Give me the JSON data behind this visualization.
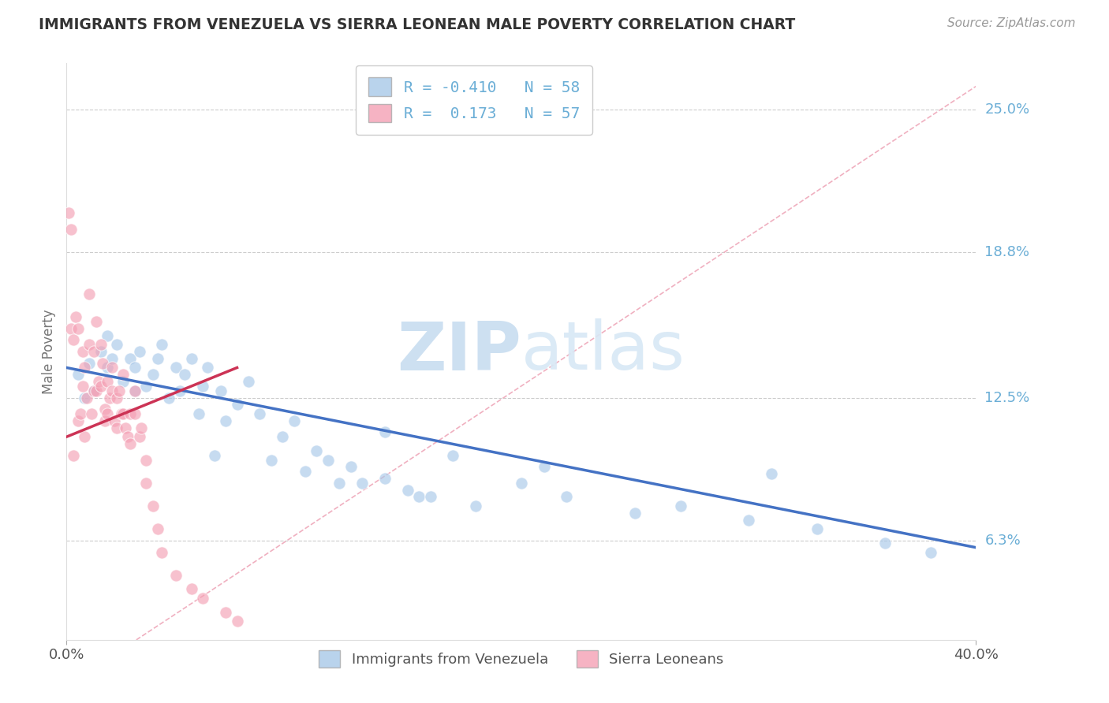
{
  "title": "IMMIGRANTS FROM VENEZUELA VS SIERRA LEONEAN MALE POVERTY CORRELATION CHART",
  "source": "Source: ZipAtlas.com",
  "xlabel": "",
  "ylabel": "Male Poverty",
  "legend_series": [
    {
      "label": "Immigrants from Venezuela",
      "R": -0.41,
      "N": 58,
      "color": "#a8c8e8"
    },
    {
      "label": "Sierra Leoneans",
      "R": 0.173,
      "N": 57,
      "color": "#f4a0b0"
    }
  ],
  "x_min": 0.0,
  "x_max": 0.4,
  "y_min": 0.02,
  "y_max": 0.27,
  "y_ticks": [
    0.063,
    0.125,
    0.188,
    0.25
  ],
  "y_tick_labels": [
    "6.3%",
    "12.5%",
    "18.8%",
    "25.0%"
  ],
  "x_ticks": [
    0.0,
    0.4
  ],
  "x_tick_labels": [
    "0.0%",
    "40.0%"
  ],
  "blue_scatter_x": [
    0.005,
    0.008,
    0.01,
    0.012,
    0.015,
    0.018,
    0.018,
    0.02,
    0.022,
    0.025,
    0.028,
    0.03,
    0.03,
    0.032,
    0.035,
    0.038,
    0.04,
    0.042,
    0.045,
    0.048,
    0.05,
    0.052,
    0.055,
    0.058,
    0.06,
    0.062,
    0.065,
    0.068,
    0.07,
    0.075,
    0.08,
    0.085,
    0.09,
    0.095,
    0.1,
    0.105,
    0.11,
    0.115,
    0.12,
    0.125,
    0.13,
    0.14,
    0.15,
    0.155,
    0.16,
    0.18,
    0.2,
    0.22,
    0.25,
    0.27,
    0.3,
    0.33,
    0.36,
    0.38,
    0.31,
    0.21,
    0.17,
    0.14
  ],
  "blue_scatter_y": [
    0.135,
    0.125,
    0.14,
    0.128,
    0.145,
    0.138,
    0.152,
    0.142,
    0.148,
    0.132,
    0.142,
    0.128,
    0.138,
    0.145,
    0.13,
    0.135,
    0.142,
    0.148,
    0.125,
    0.138,
    0.128,
    0.135,
    0.142,
    0.118,
    0.13,
    0.138,
    0.1,
    0.128,
    0.115,
    0.122,
    0.132,
    0.118,
    0.098,
    0.108,
    0.115,
    0.093,
    0.102,
    0.098,
    0.088,
    0.095,
    0.088,
    0.09,
    0.085,
    0.082,
    0.082,
    0.078,
    0.088,
    0.082,
    0.075,
    0.078,
    0.072,
    0.068,
    0.062,
    0.058,
    0.092,
    0.095,
    0.1,
    0.11
  ],
  "pink_scatter_x": [
    0.001,
    0.002,
    0.002,
    0.003,
    0.003,
    0.004,
    0.005,
    0.005,
    0.006,
    0.007,
    0.007,
    0.008,
    0.008,
    0.009,
    0.01,
    0.01,
    0.011,
    0.012,
    0.012,
    0.013,
    0.013,
    0.014,
    0.015,
    0.015,
    0.016,
    0.017,
    0.017,
    0.018,
    0.018,
    0.019,
    0.02,
    0.02,
    0.021,
    0.022,
    0.022,
    0.023,
    0.024,
    0.025,
    0.025,
    0.026,
    0.027,
    0.028,
    0.028,
    0.03,
    0.03,
    0.032,
    0.033,
    0.035,
    0.035,
    0.038,
    0.04,
    0.042,
    0.048,
    0.055,
    0.06,
    0.07,
    0.075
  ],
  "pink_scatter_y": [
    0.205,
    0.198,
    0.155,
    0.15,
    0.1,
    0.16,
    0.155,
    0.115,
    0.118,
    0.145,
    0.13,
    0.138,
    0.108,
    0.125,
    0.17,
    0.148,
    0.118,
    0.145,
    0.128,
    0.158,
    0.128,
    0.132,
    0.148,
    0.13,
    0.14,
    0.12,
    0.115,
    0.132,
    0.118,
    0.125,
    0.138,
    0.128,
    0.115,
    0.125,
    0.112,
    0.128,
    0.118,
    0.135,
    0.118,
    0.112,
    0.108,
    0.118,
    0.105,
    0.128,
    0.118,
    0.108,
    0.112,
    0.098,
    0.088,
    0.078,
    0.068,
    0.058,
    0.048,
    0.042,
    0.038,
    0.032,
    0.028
  ],
  "blue_line_x": [
    0.0,
    0.4
  ],
  "blue_line_y": [
    0.138,
    0.06
  ],
  "pink_line_x": [
    0.0,
    0.075
  ],
  "pink_line_y": [
    0.108,
    0.138
  ],
  "ref_line_x": [
    0.0,
    0.4
  ],
  "ref_line_y": [
    0.0,
    0.26
  ],
  "watermark_zip": "ZIP",
  "watermark_atlas": "atlas",
  "title_color": "#333333",
  "blue_color": "#a8c8e8",
  "pink_color": "#f4a0b4",
  "trend_blue": "#4472c4",
  "trend_pink": "#cc3355",
  "axis_label_color": "#6baed6",
  "grid_color": "#cccccc",
  "background_color": "#ffffff",
  "ref_line_color": "#f0b0c0"
}
